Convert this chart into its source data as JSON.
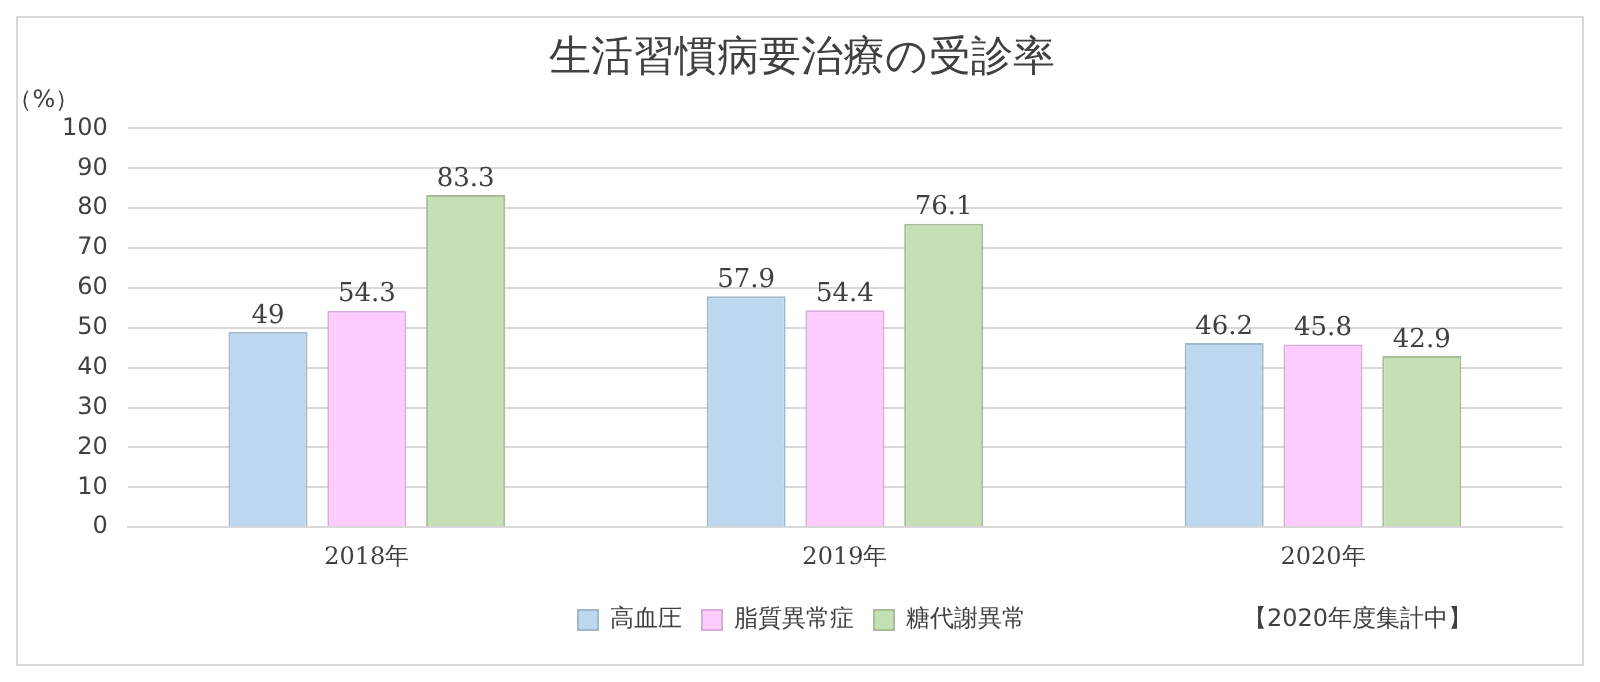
{
  "chart_data": {
    "type": "bar",
    "title": "生活習慣病要治療の受診率",
    "ylabel": "（%）",
    "categories": [
      "2018年",
      "2019年",
      "2020年"
    ],
    "series": [
      {
        "name": "高血圧",
        "color": "#bdd7ee",
        "values": [
          49,
          57.9,
          46.2
        ]
      },
      {
        "name": "脂質異常症",
        "color": "#ffccff",
        "values": [
          54.3,
          54.4,
          45.8
        ]
      },
      {
        "name": "糖代謝異常",
        "color": "#c5e0b4",
        "values": [
          83.3,
          76.1,
          42.9
        ]
      }
    ],
    "ylim": [
      0,
      100
    ],
    "yticks": [
      0,
      10,
      20,
      30,
      40,
      50,
      60,
      70,
      80,
      90,
      100
    ],
    "grid": "y",
    "legend": "bottom",
    "data_labels": true,
    "annotations": [
      "【2020年度集計中】"
    ]
  }
}
